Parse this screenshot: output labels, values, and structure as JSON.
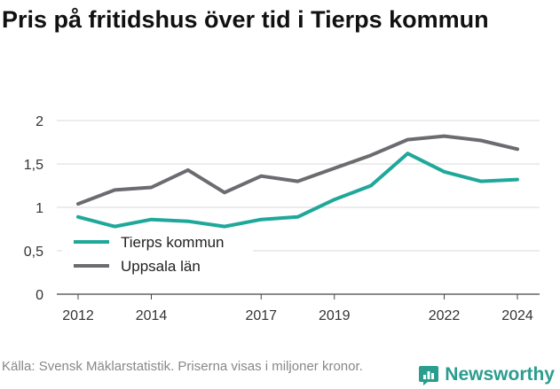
{
  "title": "Pris på fritidshus över tid i Tierps kommun",
  "source": "Källa: Svensk Mäklarstatistik. Priserna visas i miljoner kronor.",
  "brand": {
    "name": "Newsworthy",
    "icon": "bar-chart-speech-bubble-icon",
    "color": "#2a9d8f"
  },
  "chart_data": {
    "type": "line",
    "x": [
      2012,
      2013,
      2014,
      2015,
      2016,
      2017,
      2018,
      2019,
      2020,
      2021,
      2022,
      2023,
      2024
    ],
    "xticks": [
      2012,
      2014,
      2017,
      2019,
      2022,
      2024
    ],
    "yticks": [
      0,
      0.5,
      1,
      1.5,
      2
    ],
    "ytick_labels": [
      "0",
      "0,5",
      "1",
      "1,5",
      "2"
    ],
    "ylim": [
      0,
      2
    ],
    "xlim": [
      2012,
      2024
    ],
    "grid": true,
    "legend_position": "lower-left",
    "series": [
      {
        "name": "Tierps kommun",
        "color": "#1fa89a",
        "values": [
          0.89,
          0.78,
          0.86,
          0.84,
          0.78,
          0.86,
          0.89,
          1.09,
          1.25,
          1.62,
          1.41,
          1.3,
          1.32
        ]
      },
      {
        "name": "Uppsala län",
        "color": "#6b6b70",
        "values": [
          1.04,
          1.2,
          1.23,
          1.43,
          1.17,
          1.36,
          1.3,
          1.45,
          1.6,
          1.78,
          1.82,
          1.77,
          1.67
        ]
      }
    ]
  }
}
